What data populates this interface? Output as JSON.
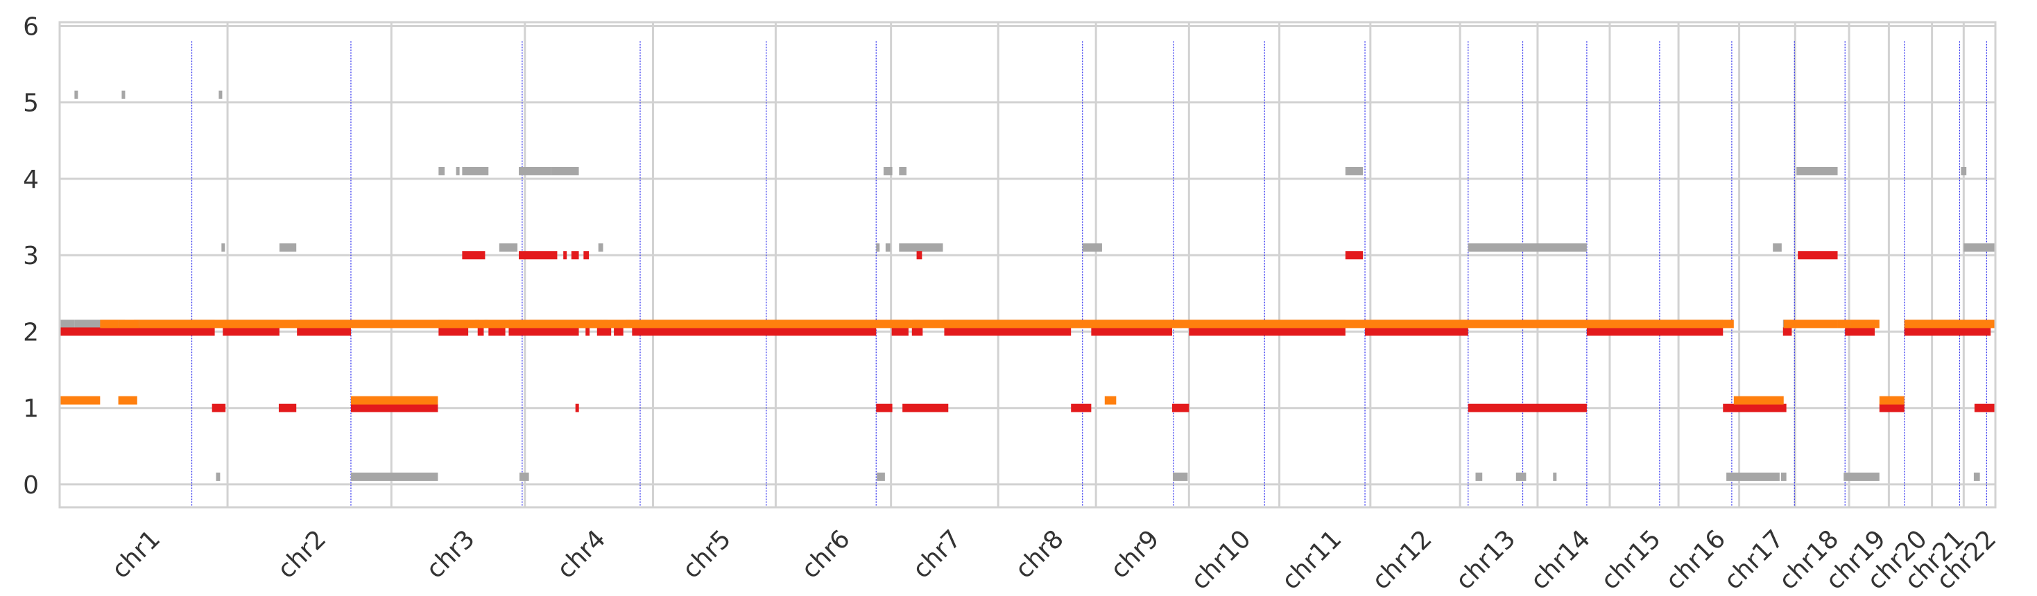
{
  "chart_data": {
    "type": "scatter",
    "title": "",
    "xlabel": "",
    "ylabel": "",
    "ylim": [
      -0.3,
      6.05
    ],
    "yticks": [
      0,
      1,
      2,
      3,
      4,
      5,
      6
    ],
    "grid": true,
    "legend": "none",
    "genome_span_mb": 2871,
    "chromosomes": [
      {
        "name": "chr1",
        "start": 0,
        "end": 249
      },
      {
        "name": "chr2",
        "start": 249,
        "end": 492
      },
      {
        "name": "chr3",
        "start": 492,
        "end": 690
      },
      {
        "name": "chr4",
        "start": 690,
        "end": 880
      },
      {
        "name": "chr5",
        "start": 880,
        "end": 1062
      },
      {
        "name": "chr6",
        "start": 1062,
        "end": 1233
      },
      {
        "name": "chr7",
        "start": 1233,
        "end": 1392
      },
      {
        "name": "chr8",
        "start": 1392,
        "end": 1537
      },
      {
        "name": "chr9",
        "start": 1537,
        "end": 1675
      },
      {
        "name": "chr10",
        "start": 1675,
        "end": 1809
      },
      {
        "name": "chr11",
        "start": 1809,
        "end": 1944
      },
      {
        "name": "chr12",
        "start": 1944,
        "end": 2077
      },
      {
        "name": "chr13",
        "start": 2077,
        "end": 2192
      },
      {
        "name": "chr14",
        "start": 2192,
        "end": 2299
      },
      {
        "name": "chr15",
        "start": 2299,
        "end": 2401
      },
      {
        "name": "chr16",
        "start": 2401,
        "end": 2491
      },
      {
        "name": "chr17",
        "start": 2491,
        "end": 2574
      },
      {
        "name": "chr18",
        "start": 2574,
        "end": 2654
      },
      {
        "name": "chr19",
        "start": 2654,
        "end": 2713
      },
      {
        "name": "chr20",
        "start": 2713,
        "end": 2777
      },
      {
        "name": "chr21",
        "start": 2777,
        "end": 2824
      },
      {
        "name": "chr22",
        "start": 2824,
        "end": 2871
      }
    ],
    "breakpoints": [
      196,
      432,
      686,
      861,
      1048,
      1211,
      1517,
      1652,
      1787,
      1936,
      2089,
      2170,
      2265,
      2373,
      2480,
      2573,
      2648,
      2736,
      2818,
      2858
    ],
    "colors": {
      "grey": "#a6a6a6",
      "red": "#e31a1c",
      "orange": "#ff7f0e",
      "breakpoint": "#2222ee",
      "grid": "#d2d2d2"
    },
    "series": [
      {
        "color": "grey",
        "offset": 0.1,
        "segments": [
          [
            22,
            24,
            5
          ],
          [
            92,
            96,
            5
          ],
          [
            236,
            240,
            5
          ],
          [
            0,
            22,
            2
          ],
          [
            22,
            92,
            2
          ],
          [
            92,
            95,
            2
          ],
          [
            110,
            230,
            2
          ],
          [
            243,
            326,
            2
          ],
          [
            352,
            432,
            2
          ],
          [
            240,
            244,
            3
          ],
          [
            326,
            351,
            3
          ],
          [
            232,
            238,
            0
          ],
          [
            432,
            561,
            0
          ],
          [
            562,
            578,
            2
          ],
          [
            616,
            622,
            2
          ],
          [
            630,
            633,
            2
          ],
          [
            666,
            692,
            2
          ],
          [
            696,
            805,
            2
          ],
          [
            806,
            813,
            2
          ],
          [
            840,
            847,
            2
          ],
          [
            852,
            1211,
            2
          ],
          [
            562,
            571,
            4
          ],
          [
            597,
            636,
            4
          ],
          [
            588,
            592,
            4
          ],
          [
            652,
            679,
            3
          ],
          [
            681,
            729,
            4
          ],
          [
            729,
            770,
            4
          ],
          [
            799,
            806,
            3
          ],
          [
            682,
            696,
            0
          ],
          [
            1211,
            1215,
            3
          ],
          [
            1225,
            1232,
            3
          ],
          [
            1245,
            1310,
            3
          ],
          [
            1222,
            1235,
            4
          ],
          [
            1245,
            1256,
            4
          ],
          [
            1236,
            1259,
            2
          ],
          [
            1266,
            1276,
            2
          ],
          [
            1310,
            1517,
            2
          ],
          [
            1212,
            1224,
            0
          ],
          [
            1517,
            1546,
            3
          ],
          [
            1540,
            1664,
            2
          ],
          [
            1651,
            1673,
            0
          ],
          [
            1675,
            1907,
            2
          ],
          [
            1907,
            1933,
            4
          ],
          [
            1936,
            2089,
            2
          ],
          [
            2089,
            2170,
            3
          ],
          [
            2170,
            2265,
            3
          ],
          [
            2100,
            2110,
            0
          ],
          [
            2160,
            2175,
            0
          ],
          [
            2215,
            2220,
            0
          ],
          [
            2265,
            2467,
            2
          ],
          [
            2472,
            2551,
            0
          ],
          [
            2553,
            2561,
            0
          ],
          [
            2541,
            2554,
            3
          ],
          [
            2556,
            2569,
            2
          ],
          [
            2576,
            2637,
            4
          ],
          [
            2648,
            2692,
            2
          ],
          [
            2646,
            2699,
            0
          ],
          [
            2736,
            2818,
            2
          ],
          [
            2818,
            2826,
            2
          ],
          [
            2820,
            2828,
            4
          ],
          [
            2824,
            2871,
            3
          ],
          [
            2839,
            2848,
            0
          ]
        ]
      },
      {
        "color": "red",
        "offset": 0,
        "segments": [
          [
            0,
            230,
            2
          ],
          [
            242,
            326,
            2
          ],
          [
            352,
            432,
            2
          ],
          [
            226,
            246,
            1
          ],
          [
            325,
            351,
            1
          ],
          [
            432,
            561,
            1
          ],
          [
            562,
            606,
            2
          ],
          [
            620,
            629,
            2
          ],
          [
            636,
            661,
            2
          ],
          [
            666,
            770,
            2
          ],
          [
            780,
            786,
            2
          ],
          [
            797,
            818,
            2
          ],
          [
            822,
            836,
            2
          ],
          [
            849,
            1211,
            2
          ],
          [
            597,
            631,
            3
          ],
          [
            777,
            785,
            3
          ],
          [
            765,
            770,
            1
          ],
          [
            681,
            738,
            3
          ],
          [
            747,
            751,
            3
          ],
          [
            759,
            770,
            3
          ],
          [
            1211,
            1235,
            1
          ],
          [
            1250,
            1318,
            1
          ],
          [
            1234,
            1259,
            2
          ],
          [
            1264,
            1280,
            2
          ],
          [
            1312,
            1500,
            2
          ],
          [
            1271,
            1279,
            3
          ],
          [
            1500,
            1530,
            1
          ],
          [
            1530,
            1650,
            2
          ],
          [
            1650,
            1675,
            1
          ],
          [
            1675,
            1907,
            2
          ],
          [
            1907,
            1933,
            3
          ],
          [
            1936,
            2089,
            2
          ],
          [
            2089,
            2265,
            1
          ],
          [
            2265,
            2467,
            2
          ],
          [
            2467,
            2561,
            1
          ],
          [
            2556,
            2569,
            2
          ],
          [
            2578,
            2637,
            3
          ],
          [
            2648,
            2692,
            2
          ],
          [
            2699,
            2736,
            1
          ],
          [
            2736,
            2864,
            2
          ],
          [
            2840,
            2871,
            1
          ]
        ]
      },
      {
        "color": "orange",
        "offset": 0.1,
        "segments": [
          [
            0,
            60,
            1
          ],
          [
            60,
            87,
            2
          ],
          [
            87,
            118,
            2
          ],
          [
            118,
            2483,
            2
          ],
          [
            87,
            115,
            1
          ],
          [
            432,
            561,
            1
          ],
          [
            1550,
            1567,
            1
          ],
          [
            2483,
            2557,
            1
          ],
          [
            2557,
            2637,
            2
          ],
          [
            2637,
            2657,
            2
          ],
          [
            2657,
            2699,
            2
          ],
          [
            2699,
            2736,
            1
          ],
          [
            2736,
            2871,
            2
          ]
        ]
      }
    ]
  }
}
